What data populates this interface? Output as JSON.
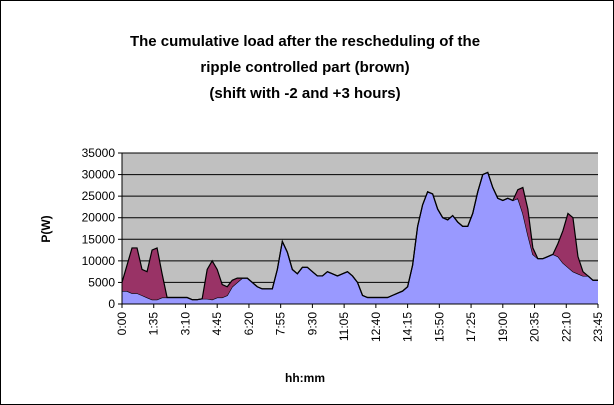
{
  "chart_data": {
    "type": "stacked_area",
    "title": [
      "The cumulative load after the rescheduling of the",
      "ripple controlled part (brown)",
      "(shift with -2 and +3 hours)"
    ],
    "x_label": "hh:mm",
    "y_label": "P(W)",
    "x": [
      0,
      15,
      30,
      45,
      60,
      75,
      90,
      105,
      120,
      135,
      150,
      165,
      180,
      195,
      210,
      225,
      240,
      255,
      270,
      285,
      300,
      315,
      330,
      345,
      360,
      375,
      390,
      405,
      420,
      435,
      450,
      465,
      480,
      495,
      510,
      525,
      540,
      555,
      570,
      585,
      600,
      615,
      630,
      645,
      660,
      675,
      690,
      705,
      720,
      735,
      750,
      765,
      780,
      795,
      810,
      825,
      840,
      855,
      870,
      885,
      900,
      915,
      930,
      945,
      960,
      975,
      990,
      1005,
      1020,
      1035,
      1050,
      1065,
      1080,
      1095,
      1110,
      1125,
      1140,
      1155,
      1170,
      1185,
      1200,
      1215,
      1230,
      1245,
      1260,
      1275,
      1290,
      1305,
      1320,
      1335,
      1350,
      1365,
      1380,
      1395,
      1410,
      1425
    ],
    "xlim": [
      0,
      1425
    ],
    "xticks": [
      {
        "value": 0,
        "label": "0:00"
      },
      {
        "value": 95,
        "label": "1:35"
      },
      {
        "value": 190,
        "label": "3:10"
      },
      {
        "value": 285,
        "label": "4:45"
      },
      {
        "value": 380,
        "label": "6:20"
      },
      {
        "value": 475,
        "label": "7:55"
      },
      {
        "value": 570,
        "label": "9:30"
      },
      {
        "value": 665,
        "label": "11:05"
      },
      {
        "value": 760,
        "label": "12:40"
      },
      {
        "value": 855,
        "label": "14:15"
      },
      {
        "value": 950,
        "label": "15:50"
      },
      {
        "value": 1045,
        "label": "17:25"
      },
      {
        "value": 1140,
        "label": "19:00"
      },
      {
        "value": 1235,
        "label": "20:35"
      },
      {
        "value": 1330,
        "label": "22:10"
      },
      {
        "value": 1425,
        "label": "23:45"
      }
    ],
    "ylim": [
      0,
      35000
    ],
    "yticks": [
      0,
      5000,
      10000,
      15000,
      20000,
      25000,
      30000,
      35000
    ],
    "grid": true,
    "series": [
      {
        "color": "#9999ff",
        "values": [
          3000,
          3000,
          2500,
          2500,
          2000,
          1500,
          1000,
          1000,
          1500,
          1500,
          1500,
          1500,
          1500,
          1500,
          1000,
          1000,
          1200,
          1200,
          1000,
          1500,
          1500,
          2000,
          4000,
          5000,
          6000,
          6000,
          5000,
          4000,
          3500,
          3500,
          3500,
          8000,
          14500,
          12000,
          8000,
          7000,
          8500,
          8500,
          7500,
          6500,
          6500,
          7500,
          7000,
          6500,
          7000,
          7500,
          6500,
          5000,
          2000,
          1500,
          1500,
          1500,
          1500,
          1500,
          2000,
          2500,
          3000,
          4000,
          9000,
          18000,
          23000,
          26000,
          25500,
          22000,
          20000,
          19500,
          20500,
          19000,
          18000,
          18000,
          21000,
          26000,
          30000,
          30500,
          27000,
          24500,
          24000,
          24500,
          24000,
          24500,
          21000,
          16000,
          11500,
          10500,
          10500,
          11000,
          11500,
          11000,
          9500,
          8500,
          7500,
          7000,
          6500,
          6500,
          5500,
          5500
        ]
      },
      {
        "color": "#993366",
        "values": [
          2000,
          6000,
          10500,
          10500,
          6000,
          6000,
          11500,
          12000,
          5500,
          0,
          0,
          0,
          0,
          0,
          0,
          0,
          0,
          6800,
          9000,
          6500,
          3000,
          2000,
          1500,
          1000,
          0,
          0,
          0,
          0,
          0,
          0,
          0,
          0,
          0,
          0,
          0,
          0,
          0,
          0,
          0,
          0,
          0,
          0,
          0,
          0,
          0,
          0,
          0,
          0,
          0,
          0,
          0,
          0,
          0,
          0,
          0,
          0,
          0,
          0,
          0,
          0,
          0,
          0,
          0,
          0,
          0,
          0,
          0,
          0,
          0,
          0,
          0,
          0,
          0,
          0,
          0,
          0,
          0,
          0,
          0,
          2000,
          6000,
          6000,
          1500,
          0,
          0,
          0,
          0,
          3000,
          7500,
          12500,
          12500,
          4000,
          1000,
          0,
          0,
          0
        ]
      }
    ]
  }
}
